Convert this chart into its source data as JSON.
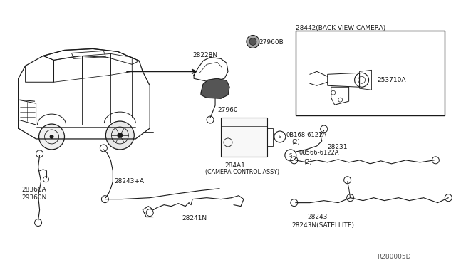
{
  "bg_color": "#ffffff",
  "line_color": "#1a1a1a",
  "text_color": "#1a1a1a",
  "fig_width": 6.4,
  "fig_height": 3.72,
  "dpi": 100,
  "ref_code": "R280005D",
  "title_28442": "28442(BACK VIEW CAMERA)",
  "label_28228N": "28228N",
  "label_27960B": "27960B",
  "label_27960": "27960",
  "label_253710A": "253710A",
  "label_284A1": "284A1",
  "label_camera_ctrl": "(CAMERA CONTROL ASSY)",
  "label_0B168": "0B168-6121A",
  "label_0B168_2": "(2)",
  "label_28243A": "28243+A",
  "label_28241N": "28241N",
  "label_28360A": "28360A",
  "label_29360N": "29360N",
  "label_28231": "28231",
  "label_08566": "08566-6122A",
  "label_08566_2": "(2)",
  "label_28243": "28243",
  "label_28243N": "28243N(SATELLITE)"
}
